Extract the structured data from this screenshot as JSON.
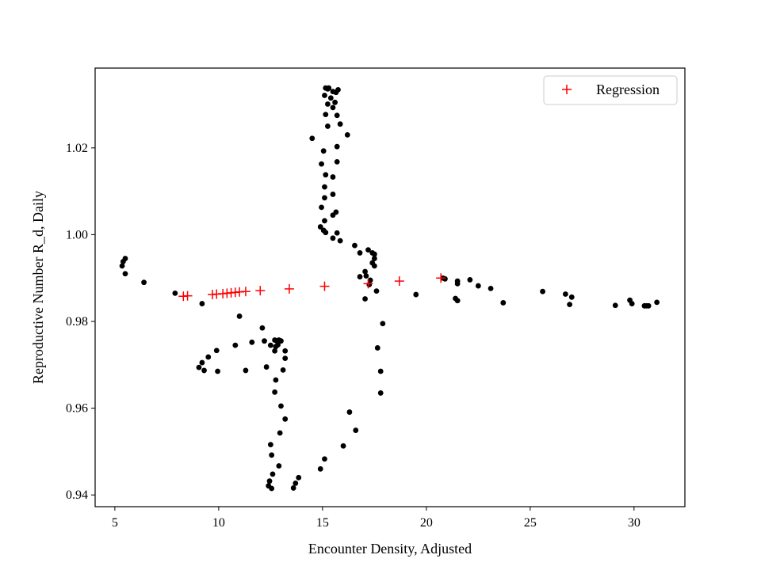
{
  "chart_data": {
    "type": "scatter",
    "title": "",
    "xlabel": "Encounter Density, Adjusted",
    "ylabel": "Reproductive Number R_d, Daily",
    "xlim": [
      4.05,
      32.45
    ],
    "ylim": [
      0.9373,
      1.0384
    ],
    "xticks": [
      5,
      10,
      15,
      20,
      25,
      30
    ],
    "yticks": [
      0.94,
      0.96,
      0.98,
      1.0,
      1.02
    ],
    "ytick_labels": [
      "0.94",
      "0.96",
      "0.98",
      "1.00",
      "1.02"
    ],
    "grid": false,
    "legend": {
      "position": "top-right",
      "entries": [
        "Regression"
      ]
    },
    "series": [
      {
        "marker": "circle",
        "color": "#000000",
        "points": [
          [
            5.4,
            0.9938
          ],
          [
            5.5,
            0.9945
          ],
          [
            5.35,
            0.9928
          ],
          [
            5.5,
            0.991
          ],
          [
            6.4,
            0.989
          ],
          [
            7.9,
            0.9865
          ],
          [
            9.2,
            0.9841
          ],
          [
            11.0,
            0.9812
          ],
          [
            12.1,
            0.9785
          ],
          [
            12.2,
            0.9755
          ],
          [
            11.6,
            0.9752
          ],
          [
            10.8,
            0.9745
          ],
          [
            9.9,
            0.9733
          ],
          [
            9.5,
            0.9718
          ],
          [
            9.2,
            0.9705
          ],
          [
            9.05,
            0.9694
          ],
          [
            9.3,
            0.9687
          ],
          [
            9.95,
            0.9685
          ],
          [
            11.3,
            0.9687
          ],
          [
            12.3,
            0.9695
          ],
          [
            12.5,
            0.9745
          ],
          [
            12.7,
            0.9757
          ],
          [
            12.8,
            0.9755
          ],
          [
            12.9,
            0.9757
          ],
          [
            12.95,
            0.9755
          ],
          [
            13.0,
            0.9755
          ],
          [
            12.85,
            0.9746
          ],
          [
            12.75,
            0.9742
          ],
          [
            13.2,
            0.9732
          ],
          [
            12.7,
            0.9732
          ],
          [
            13.2,
            0.9715
          ],
          [
            13.1,
            0.9688
          ],
          [
            12.75,
            0.9665
          ],
          [
            12.7,
            0.9637
          ],
          [
            13.0,
            0.9605
          ],
          [
            13.2,
            0.9575
          ],
          [
            12.95,
            0.9543
          ],
          [
            12.5,
            0.9516
          ],
          [
            12.55,
            0.9492
          ],
          [
            12.9,
            0.9467
          ],
          [
            12.6,
            0.9448
          ],
          [
            12.45,
            0.9432
          ],
          [
            12.4,
            0.9421
          ],
          [
            12.55,
            0.9415
          ],
          [
            13.6,
            0.9416
          ],
          [
            13.7,
            0.9427
          ],
          [
            13.85,
            0.944
          ],
          [
            14.9,
            0.946
          ],
          [
            15.1,
            0.9483
          ],
          [
            16.0,
            0.9513
          ],
          [
            16.6,
            0.9549
          ],
          [
            16.3,
            0.9591
          ],
          [
            17.8,
            0.9635
          ],
          [
            17.8,
            0.9685
          ],
          [
            17.65,
            0.9739
          ],
          [
            17.9,
            0.9795
          ],
          [
            17.6,
            0.987
          ],
          [
            17.05,
            0.9852
          ],
          [
            17.25,
            0.9885
          ],
          [
            17.3,
            0.9895
          ],
          [
            17.1,
            0.9905
          ],
          [
            17.05,
            0.9915
          ],
          [
            16.8,
            0.9903
          ],
          [
            17.5,
            0.9928
          ],
          [
            17.4,
            0.9935
          ],
          [
            17.5,
            0.9945
          ],
          [
            17.5,
            0.9955
          ],
          [
            17.4,
            0.9958
          ],
          [
            17.2,
            0.9965
          ],
          [
            16.8,
            0.9958
          ],
          [
            16.55,
            0.9975
          ],
          [
            15.85,
            0.9986
          ],
          [
            15.5,
            0.9992
          ],
          [
            15.15,
            1.0005
          ],
          [
            15.05,
            1.001
          ],
          [
            14.9,
            1.0018
          ],
          [
            15.7,
            1.0004
          ],
          [
            15.1,
            1.0032
          ],
          [
            15.65,
            1.0052
          ],
          [
            15.5,
            1.0045
          ],
          [
            14.95,
            1.0063
          ],
          [
            15.5,
            1.0093
          ],
          [
            15.1,
            1.0085
          ],
          [
            15.1,
            1.011
          ],
          [
            15.5,
            1.0133
          ],
          [
            15.15,
            1.0138
          ],
          [
            15.7,
            1.0168
          ],
          [
            14.95,
            1.0163
          ],
          [
            15.05,
            1.0193
          ],
          [
            15.7,
            1.0203
          ],
          [
            14.5,
            1.0222
          ],
          [
            16.2,
            1.023
          ],
          [
            15.25,
            1.025
          ],
          [
            15.85,
            1.0255
          ],
          [
            15.7,
            1.0275
          ],
          [
            15.15,
            1.0277
          ],
          [
            15.5,
            1.0293
          ],
          [
            15.25,
            1.0301
          ],
          [
            15.6,
            1.0305
          ],
          [
            15.4,
            1.0315
          ],
          [
            15.1,
            1.0321
          ],
          [
            15.65,
            1.0328
          ],
          [
            15.5,
            1.033
          ],
          [
            15.75,
            1.0334
          ],
          [
            15.15,
            1.0338
          ],
          [
            15.3,
            1.0338
          ],
          [
            15.25,
            1.0336
          ],
          [
            19.5,
            0.9862
          ],
          [
            20.8,
            0.99
          ],
          [
            20.9,
            0.9898
          ],
          [
            21.5,
            0.9893
          ],
          [
            21.5,
            0.9887
          ],
          [
            22.1,
            0.9896
          ],
          [
            22.5,
            0.9882
          ],
          [
            23.1,
            0.9876
          ],
          [
            21.4,
            0.9853
          ],
          [
            21.5,
            0.9848
          ],
          [
            23.7,
            0.9843
          ],
          [
            25.6,
            0.9869
          ],
          [
            26.7,
            0.9863
          ],
          [
            27.0,
            0.9856
          ],
          [
            26.9,
            0.9839
          ],
          [
            29.1,
            0.9837
          ],
          [
            29.8,
            0.9849
          ],
          [
            29.9,
            0.9841
          ],
          [
            30.5,
            0.9836
          ],
          [
            30.6,
            0.9836
          ],
          [
            30.7,
            0.9836
          ],
          [
            31.1,
            0.9844
          ]
        ]
      },
      {
        "name": "Regression",
        "marker": "plus",
        "color": "#ff0000",
        "points": [
          [
            8.3,
            0.9858
          ],
          [
            8.5,
            0.9859
          ],
          [
            9.7,
            0.9862
          ],
          [
            9.9,
            0.9863
          ],
          [
            10.2,
            0.9864
          ],
          [
            10.4,
            0.9865
          ],
          [
            10.6,
            0.9866
          ],
          [
            10.8,
            0.9867
          ],
          [
            11.0,
            0.9868
          ],
          [
            11.3,
            0.9869
          ],
          [
            12.0,
            0.9871
          ],
          [
            13.4,
            0.9875
          ],
          [
            15.1,
            0.9881
          ],
          [
            17.2,
            0.9887
          ],
          [
            18.7,
            0.9893
          ],
          [
            20.7,
            0.99
          ]
        ]
      }
    ]
  }
}
